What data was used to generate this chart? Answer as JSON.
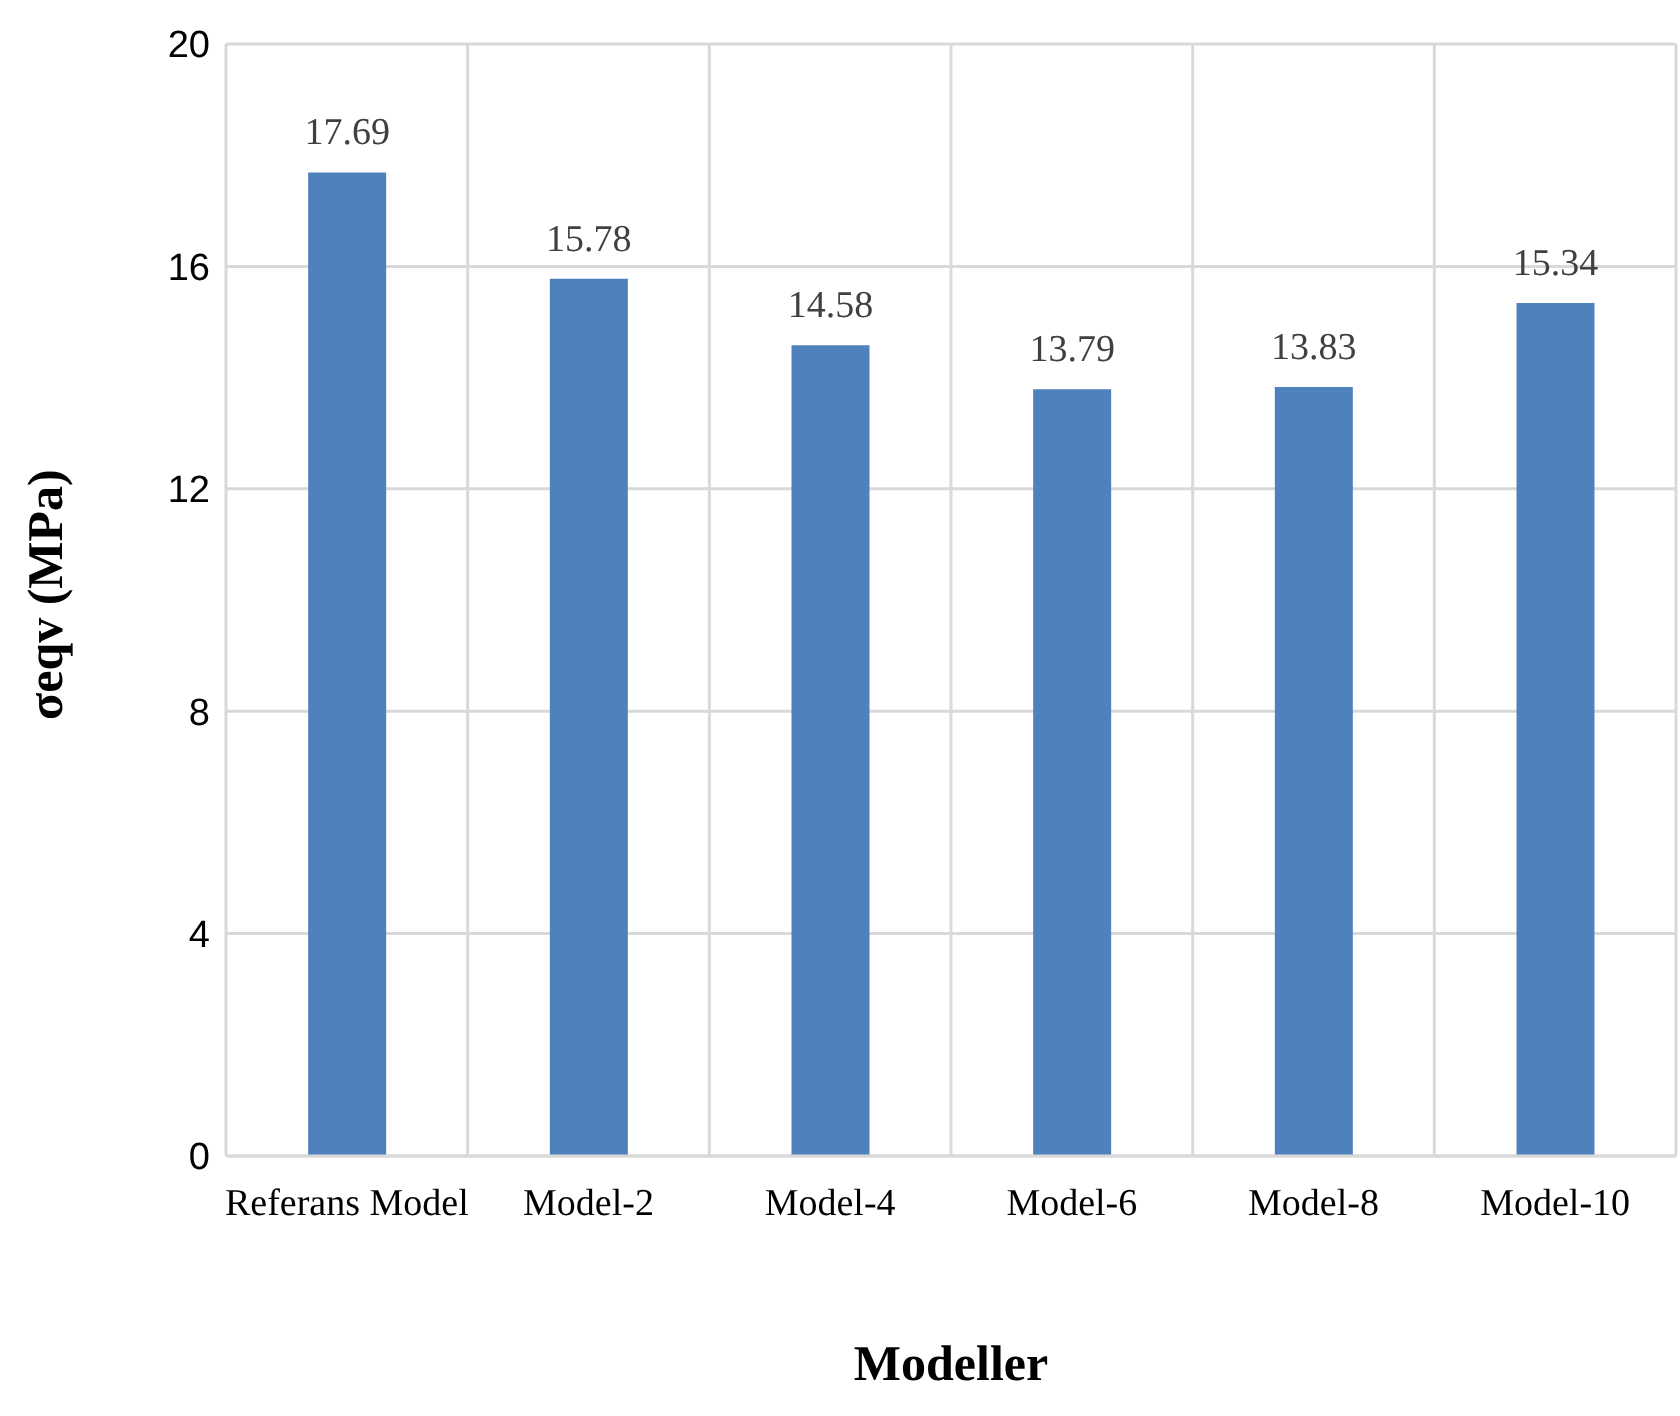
{
  "chart_data": {
    "type": "bar",
    "xlabel": "Modeller",
    "ylabel": "σeqv (MPa)",
    "categories": [
      "Referans Model",
      "Model-2",
      "Model-4",
      "Model-6",
      "Model-8",
      "Model-10"
    ],
    "values": [
      17.69,
      15.78,
      14.58,
      13.79,
      13.83,
      15.34
    ],
    "color": "#4f81bd",
    "ylim": [
      0,
      20
    ],
    "yticks": [
      0,
      4,
      8,
      12,
      16,
      20
    ],
    "grid": true,
    "data_labels": true
  }
}
